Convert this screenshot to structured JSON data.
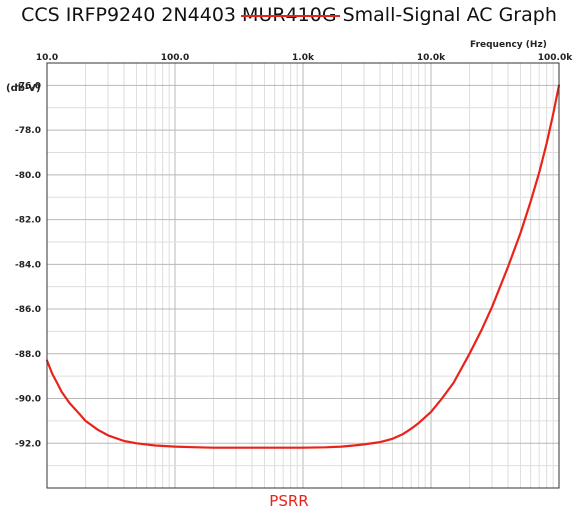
{
  "chart_data": {
    "type": "line",
    "title": {
      "prefix": "CCS IRFP9240 2N4403 ",
      "struck": "MUR410G",
      "suffix": " Small-Signal AC Graph"
    },
    "xlabel": "Frequency (Hz)",
    "ylabel": "(db-V)",
    "caption": "PSRR",
    "x_scale": "log",
    "xlim": [
      10,
      100000
    ],
    "ylim": [
      -94,
      -75
    ],
    "x_ticks": [
      {
        "value": 10,
        "label": "10.0"
      },
      {
        "value": 100,
        "label": "100.0"
      },
      {
        "value": 1000,
        "label": "1.0k"
      },
      {
        "value": 10000,
        "label": "10.0k"
      },
      {
        "value": 100000,
        "label": "100.0k"
      }
    ],
    "y_ticks": [
      {
        "value": -76,
        "label": "-76.0"
      },
      {
        "value": -78,
        "label": "-78.0"
      },
      {
        "value": -80,
        "label": "-80.0"
      },
      {
        "value": -82,
        "label": "-82.0"
      },
      {
        "value": -84,
        "label": "-84.0"
      },
      {
        "value": -86,
        "label": "-86.0"
      },
      {
        "value": -88,
        "label": "-88.0"
      },
      {
        "value": -90,
        "label": "-90.0"
      },
      {
        "value": -92,
        "label": "-92.0"
      }
    ],
    "grid": true,
    "series": [
      {
        "color": "#e8241a",
        "x": [
          10,
          11,
          12,
          13,
          15,
          18,
          20,
          25,
          30,
          40,
          50,
          70,
          100,
          150,
          200,
          300,
          500,
          700,
          1000,
          1500,
          2000,
          2500,
          3000,
          4000,
          5000,
          6000,
          7000,
          8000,
          10000,
          12000,
          15000,
          20000,
          25000,
          30000,
          40000,
          50000,
          60000,
          70000,
          80000,
          90000,
          100000
        ],
        "y": [
          -88.3,
          -88.9,
          -89.3,
          -89.7,
          -90.2,
          -90.7,
          -91.0,
          -91.4,
          -91.65,
          -91.9,
          -92.0,
          -92.1,
          -92.15,
          -92.18,
          -92.2,
          -92.2,
          -92.2,
          -92.2,
          -92.2,
          -92.18,
          -92.15,
          -92.1,
          -92.05,
          -91.95,
          -91.8,
          -91.6,
          -91.35,
          -91.1,
          -90.6,
          -90.05,
          -89.3,
          -88.0,
          -86.9,
          -85.9,
          -84.1,
          -82.6,
          -81.2,
          -79.9,
          -78.6,
          -77.3,
          -76.0
        ]
      }
    ]
  },
  "colors": {
    "series": "#e8241a",
    "grid_major": "#b8b8b8",
    "grid_minor": "#dedede",
    "frame": "#333333"
  }
}
